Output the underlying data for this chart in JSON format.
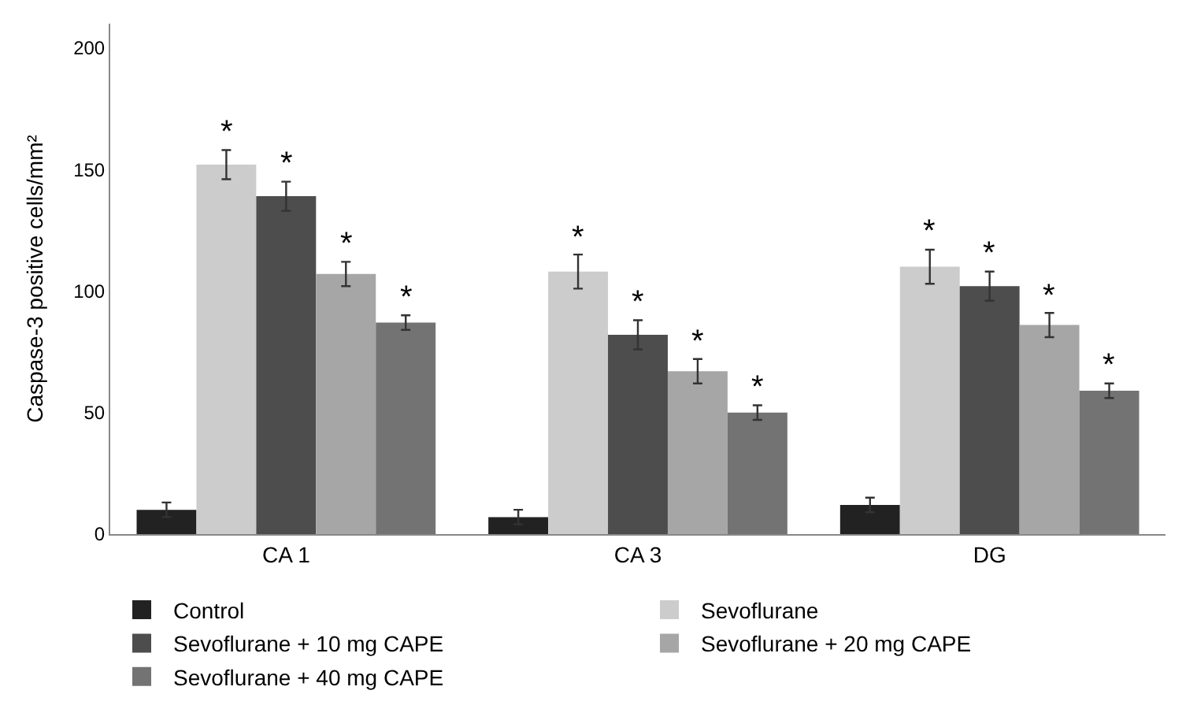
{
  "chart_data": {
    "type": "bar",
    "ylabel": "Caspase-3 positive cells/mm²",
    "categories": [
      "CA 1",
      "CA 3",
      "DG"
    ],
    "series": [
      {
        "name": "Control",
        "color": "#222222",
        "values": [
          10,
          7,
          12
        ],
        "errors": [
          3,
          3,
          3
        ],
        "value_labels": [
          null,
          null,
          null
        ]
      },
      {
        "name": "Sevoflurane",
        "color": "#cccccc",
        "values": [
          152,
          108,
          110
        ],
        "errors": [
          6,
          7,
          7
        ],
        "value_labels": [
          "*",
          "*",
          "*"
        ]
      },
      {
        "name": "Sevoflurane + 10 mg CAPE",
        "color": "#4d4d4d",
        "values": [
          139,
          82,
          102
        ],
        "errors": [
          6,
          6,
          6
        ],
        "value_labels": [
          "*",
          "*",
          "*"
        ]
      },
      {
        "name": "Sevoflurane + 20 mg CAPE",
        "color": "#a6a6a6",
        "values": [
          107,
          67,
          86
        ],
        "errors": [
          5,
          5,
          5
        ],
        "value_labels": [
          "*",
          "*",
          "*"
        ]
      },
      {
        "name": "Sevoflurane + 40 mg CAPE",
        "color": "#737373",
        "values": [
          87,
          50,
          59
        ],
        "errors": [
          3,
          3,
          3
        ],
        "value_labels": [
          "*",
          "*",
          "*"
        ]
      }
    ],
    "ylim": [
      0,
      210
    ],
    "yticks": [
      0,
      50,
      100,
      150,
      200
    ],
    "legend": "bottom"
  }
}
